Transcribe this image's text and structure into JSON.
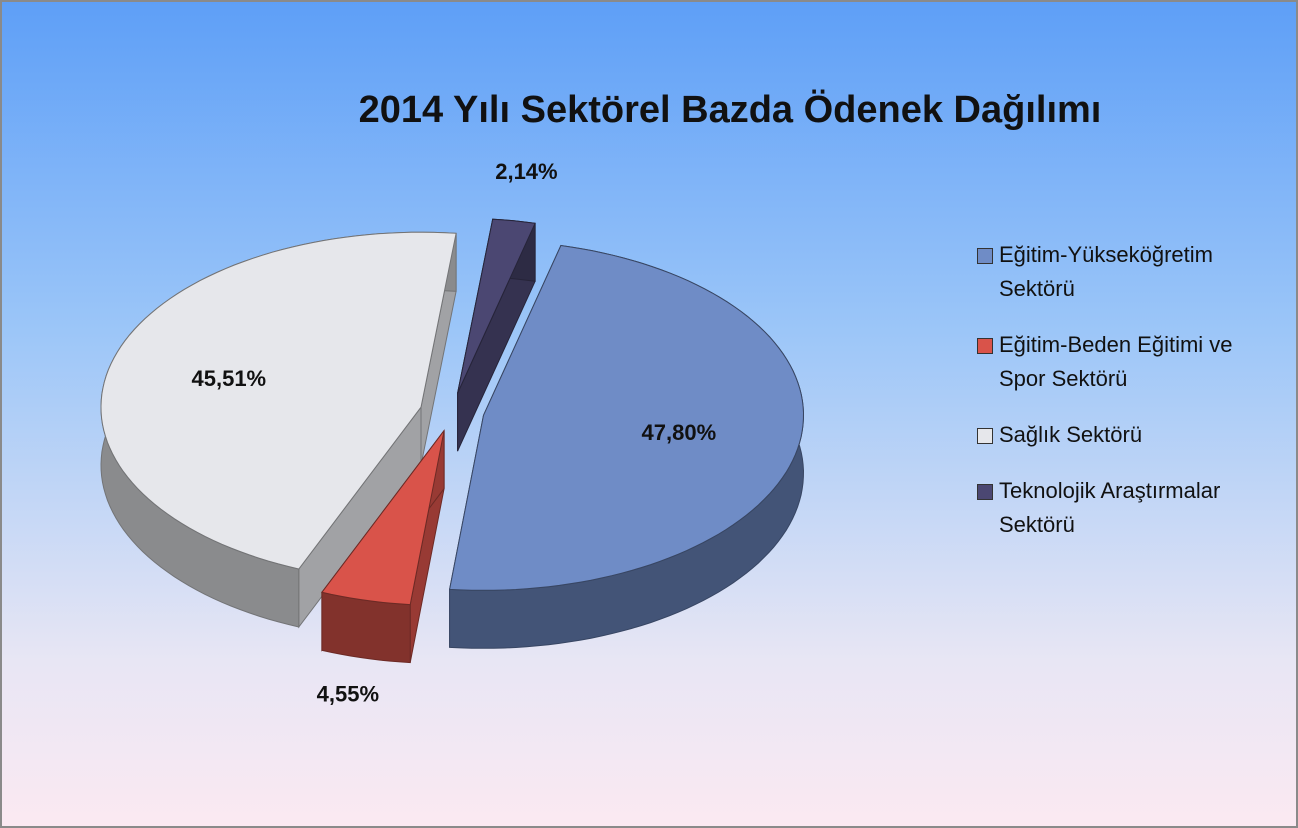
{
  "chart_data": {
    "type": "pie",
    "title": "2014 Yılı Sektörel Bazda Ödenek Dağılımı",
    "categories": [
      "Eğitim-Yükseköğretim Sektörü",
      "Eğitim-Beden Eğitimi ve Spor Sektörü",
      "Sağlık Sektörü",
      "Teknolojik Araştırmalar Sektörü"
    ],
    "values": [
      47.8,
      4.55,
      45.51,
      2.14
    ],
    "value_labels": [
      "47,80%",
      "4,55%",
      "45,51%",
      "2,14%"
    ],
    "colors": [
      "#6f8cc6",
      "#d9534a",
      "#e6e7eb",
      "#4b4772"
    ],
    "legend": "right"
  }
}
